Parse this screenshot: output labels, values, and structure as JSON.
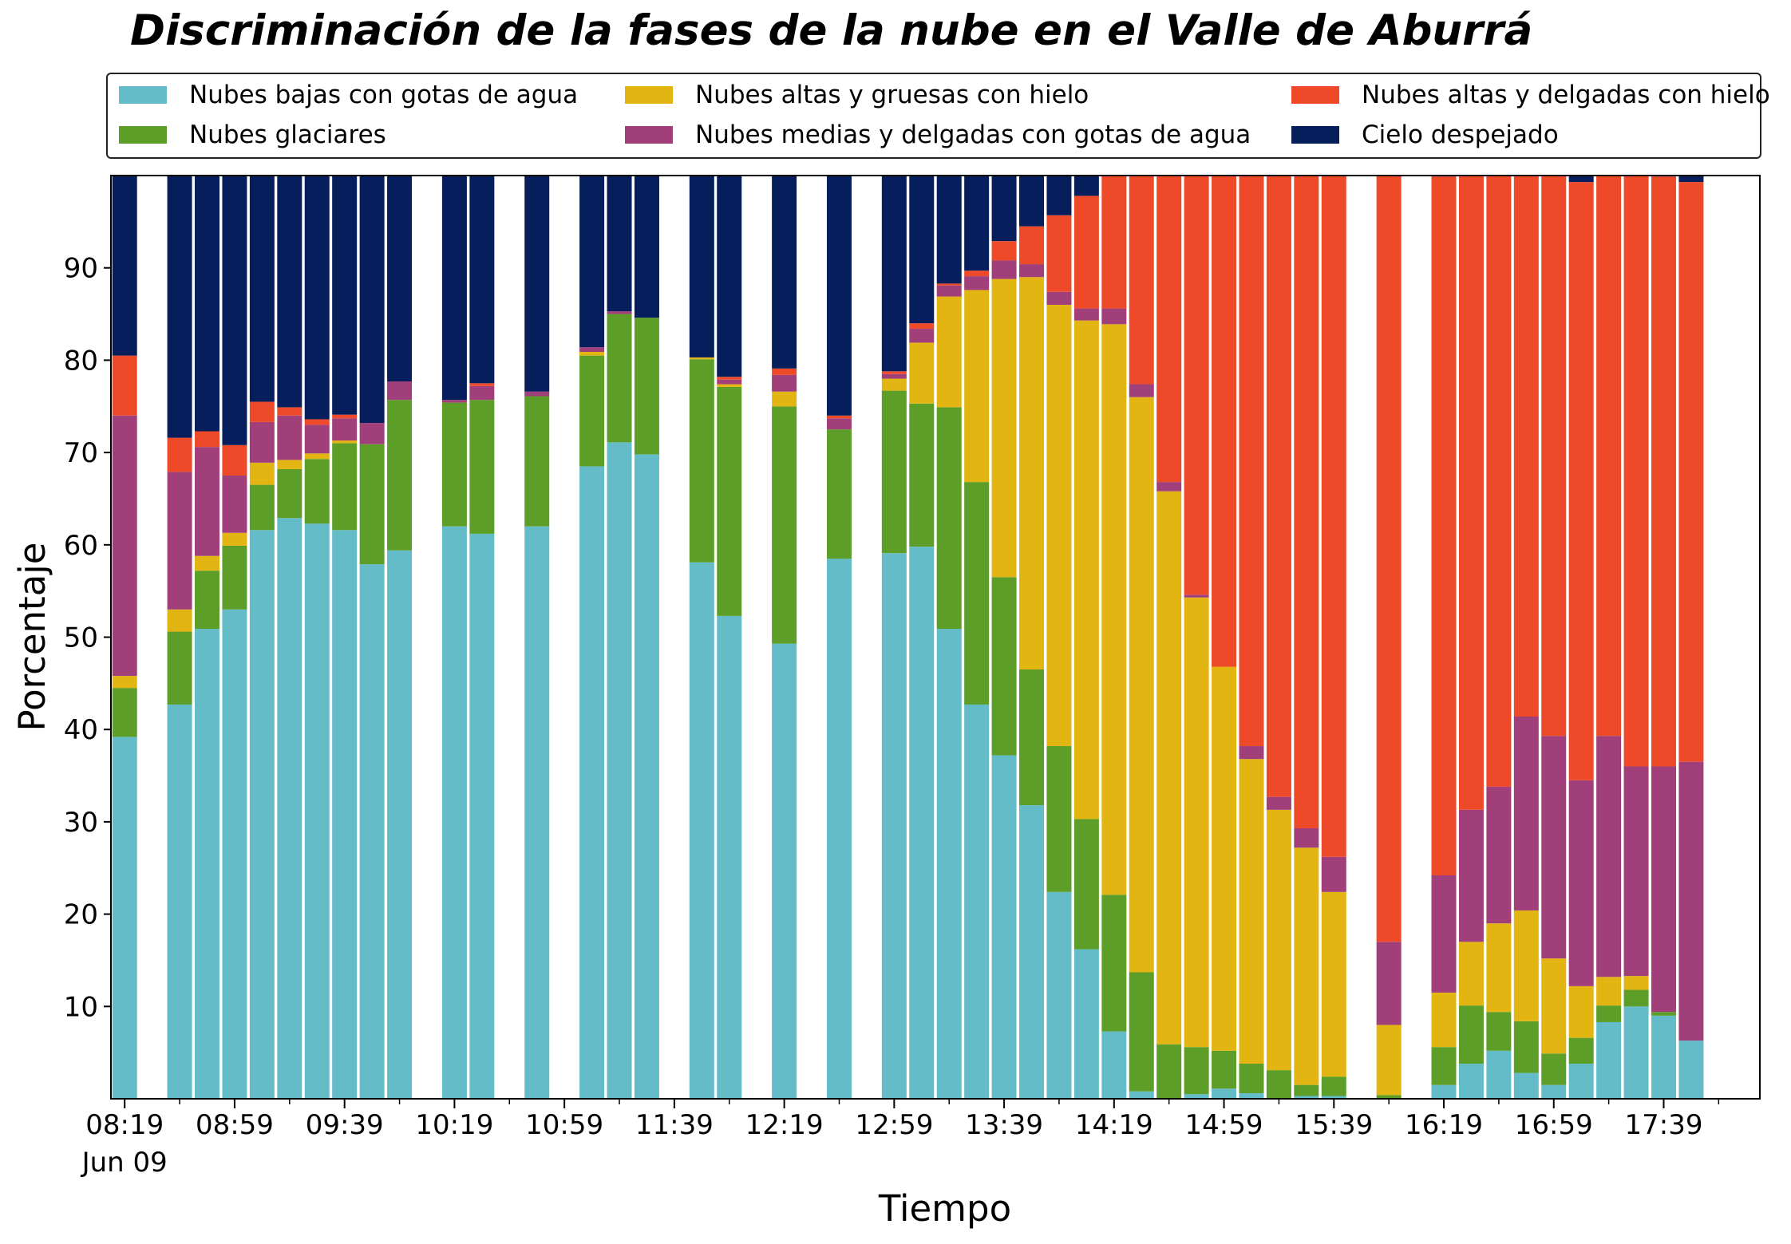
{
  "chart_data": {
    "type": "bar",
    "stacked": true,
    "title": "Discriminación de la fases de la nube en el Valle de Aburrá",
    "xlabel": "Tiempo",
    "ylabel": "Porcentaje",
    "ylim": [
      0,
      100
    ],
    "yticks": [
      10,
      20,
      30,
      40,
      50,
      60,
      70,
      80,
      90
    ],
    "x_range": [
      "08:14",
      "18:14"
    ],
    "x_major_ticks": [
      {
        "time": "08:19",
        "label": "08:19",
        "sublabel": "Jun 09"
      },
      {
        "time": "08:59",
        "label": "08:59"
      },
      {
        "time": "09:39",
        "label": "09:39"
      },
      {
        "time": "10:19",
        "label": "10:19"
      },
      {
        "time": "10:59",
        "label": "10:59"
      },
      {
        "time": "11:39",
        "label": "11:39"
      },
      {
        "time": "12:19",
        "label": "12:19"
      },
      {
        "time": "12:59",
        "label": "12:59"
      },
      {
        "time": "13:39",
        "label": "13:39"
      },
      {
        "time": "14:19",
        "label": "14:19"
      },
      {
        "time": "14:59",
        "label": "14:59"
      },
      {
        "time": "15:39",
        "label": "15:39"
      },
      {
        "time": "16:19",
        "label": "16:19"
      },
      {
        "time": "16:59",
        "label": "16:59"
      },
      {
        "time": "17:39",
        "label": "17:39"
      }
    ],
    "grid": false,
    "legend_position": "top",
    "series": [
      {
        "name": "Nubes bajas con gotas de agua",
        "color": "#64bcc8"
      },
      {
        "name": "Nubes glaciares",
        "color": "#5c9e28"
      },
      {
        "name": "Nubes altas y gruesas con hielo",
        "color": "#e2b512"
      },
      {
        "name": "Nubes medias y delgadas con gotas de agua",
        "color": "#a03f7a"
      },
      {
        "name": "Nubes altas y delgadas con hielo",
        "color": "#ee4a2a"
      },
      {
        "name": "Cielo despejado",
        "color": "#061f5c"
      }
    ],
    "bars": [
      {
        "time": "08:19",
        "values": [
          39.2,
          5.3,
          1.3,
          28.2,
          6.5,
          19.5
        ]
      },
      {
        "time": "08:39",
        "values": [
          42.7,
          7.9,
          2.4,
          14.9,
          3.7,
          28.4
        ]
      },
      {
        "time": "08:49",
        "values": [
          50.9,
          6.3,
          1.6,
          11.8,
          1.7,
          27.7
        ]
      },
      {
        "time": "08:59",
        "values": [
          53.0,
          6.9,
          1.4,
          6.2,
          3.3,
          29.2
        ]
      },
      {
        "time": "09:09",
        "values": [
          61.6,
          4.9,
          2.4,
          4.4,
          2.2,
          24.5
        ]
      },
      {
        "time": "09:19",
        "values": [
          62.9,
          5.3,
          1.0,
          4.8,
          0.9,
          25.1
        ]
      },
      {
        "time": "09:29",
        "values": [
          62.3,
          7.0,
          0.6,
          3.1,
          0.6,
          26.4
        ]
      },
      {
        "time": "09:39",
        "values": [
          61.6,
          9.4,
          0.3,
          2.4,
          0.4,
          25.9
        ]
      },
      {
        "time": "09:49",
        "values": [
          57.9,
          13.0,
          0.0,
          2.3,
          0.0,
          26.8
        ]
      },
      {
        "time": "09:59",
        "values": [
          59.4,
          16.3,
          0.0,
          2.0,
          0.0,
          22.3
        ]
      },
      {
        "time": "10:19",
        "values": [
          62.0,
          13.4,
          0.0,
          0.3,
          0.0,
          24.3
        ]
      },
      {
        "time": "10:29",
        "values": [
          61.2,
          14.5,
          0.0,
          1.5,
          0.3,
          22.5
        ]
      },
      {
        "time": "10:49",
        "values": [
          62.0,
          14.1,
          0.0,
          0.5,
          0.0,
          23.4
        ]
      },
      {
        "time": "11:09",
        "values": [
          68.5,
          12.0,
          0.4,
          0.5,
          0.0,
          18.6
        ]
      },
      {
        "time": "11:19",
        "values": [
          71.1,
          13.9,
          0.0,
          0.3,
          0.0,
          14.7
        ]
      },
      {
        "time": "11:29",
        "values": [
          69.8,
          14.8,
          0.0,
          0.0,
          0.0,
          15.4
        ]
      },
      {
        "time": "11:49",
        "values": [
          58.1,
          22.0,
          0.2,
          0.0,
          0.0,
          19.7
        ]
      },
      {
        "time": "11:59",
        "values": [
          52.3,
          24.8,
          0.3,
          0.5,
          0.3,
          21.8
        ]
      },
      {
        "time": "12:19",
        "values": [
          49.3,
          25.7,
          1.6,
          1.8,
          0.7,
          20.9
        ]
      },
      {
        "time": "12:39",
        "values": [
          58.5,
          14.0,
          0.0,
          1.2,
          0.3,
          26.0
        ]
      },
      {
        "time": "12:59",
        "values": [
          59.1,
          17.6,
          1.3,
          0.5,
          0.3,
          21.2
        ]
      },
      {
        "time": "13:09",
        "values": [
          59.8,
          15.5,
          6.6,
          1.5,
          0.6,
          16.0
        ]
      },
      {
        "time": "13:19",
        "values": [
          50.9,
          24.0,
          12.0,
          1.2,
          0.2,
          11.7
        ]
      },
      {
        "time": "13:29",
        "values": [
          42.7,
          24.1,
          20.8,
          1.5,
          0.6,
          10.3
        ]
      },
      {
        "time": "13:39",
        "values": [
          37.2,
          19.3,
          32.3,
          2.0,
          2.1,
          7.1
        ]
      },
      {
        "time": "13:49",
        "values": [
          31.8,
          14.7,
          42.5,
          1.4,
          4.1,
          5.5
        ]
      },
      {
        "time": "13:59",
        "values": [
          22.4,
          15.8,
          47.8,
          1.4,
          8.3,
          4.3
        ]
      },
      {
        "time": "14:09",
        "values": [
          16.2,
          14.1,
          54.0,
          1.3,
          12.2,
          2.2
        ]
      },
      {
        "time": "14:19",
        "values": [
          7.3,
          14.8,
          61.8,
          1.7,
          14.6,
          0.5
        ]
      },
      {
        "time": "14:29",
        "values": [
          0.8,
          12.9,
          62.3,
          1.4,
          22.7,
          0.3
        ]
      },
      {
        "time": "14:39",
        "values": [
          0.0,
          5.9,
          59.9,
          1.0,
          33.2,
          0.0
        ]
      },
      {
        "time": "14:49",
        "values": [
          0.5,
          5.1,
          48.7,
          0.3,
          45.4,
          0.0
        ]
      },
      {
        "time": "14:59",
        "values": [
          1.1,
          4.1,
          41.6,
          0.0,
          53.2,
          0.0
        ]
      },
      {
        "time": "15:09",
        "values": [
          0.6,
          3.2,
          33.0,
          1.4,
          61.8,
          0.0
        ]
      },
      {
        "time": "15:19",
        "values": [
          0.0,
          3.1,
          28.2,
          1.4,
          67.3,
          0.0
        ]
      },
      {
        "time": "15:29",
        "values": [
          0.3,
          1.2,
          25.7,
          2.1,
          70.7,
          0.0
        ]
      },
      {
        "time": "15:39",
        "values": [
          0.3,
          2.1,
          20.0,
          3.8,
          73.8,
          0.0
        ]
      },
      {
        "time": "15:59",
        "values": [
          0.0,
          0.4,
          7.6,
          9.0,
          83.0,
          0.0
        ]
      },
      {
        "time": "16:19",
        "values": [
          1.5,
          4.1,
          5.9,
          12.7,
          75.7,
          0.6
        ]
      },
      {
        "time": "16:29",
        "values": [
          3.8,
          6.3,
          6.9,
          14.3,
          68.7,
          0.0
        ]
      },
      {
        "time": "16:39",
        "values": [
          5.2,
          4.2,
          9.6,
          14.8,
          66.2,
          0.0
        ]
      },
      {
        "time": "16:49",
        "values": [
          2.8,
          5.6,
          12.0,
          21.0,
          58.6,
          0.0
        ]
      },
      {
        "time": "16:59",
        "values": [
          1.5,
          3.4,
          10.3,
          24.1,
          60.7,
          0.0
        ]
      },
      {
        "time": "17:09",
        "values": [
          3.8,
          2.8,
          5.6,
          22.3,
          64.8,
          0.9
        ]
      },
      {
        "time": "17:19",
        "values": [
          8.3,
          1.8,
          3.1,
          26.1,
          60.7,
          0.0
        ]
      },
      {
        "time": "17:29",
        "values": [
          10.0,
          1.8,
          1.5,
          22.7,
          64.0,
          0.0
        ]
      },
      {
        "time": "17:39",
        "values": [
          9.0,
          0.4,
          0.0,
          26.6,
          63.9,
          0.1
        ]
      },
      {
        "time": "17:49",
        "values": [
          6.3,
          0.0,
          0.0,
          30.2,
          62.8,
          0.7
        ]
      }
    ]
  }
}
